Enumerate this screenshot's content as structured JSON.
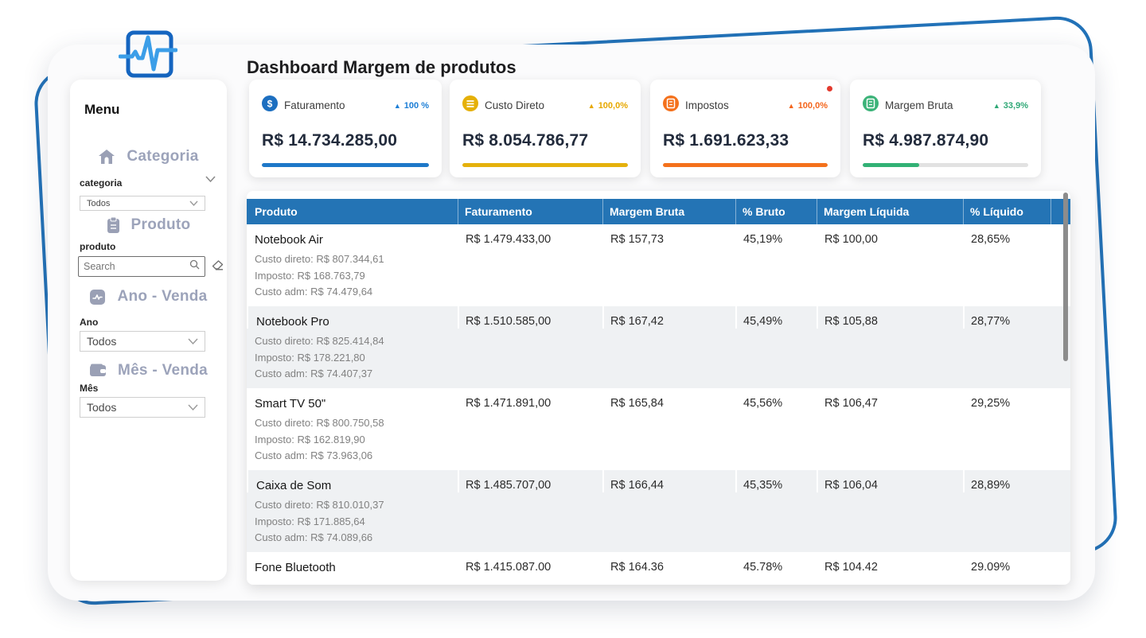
{
  "app": {
    "title": "Dashboard Margem de produtos"
  },
  "sidebar": {
    "title": "Menu",
    "sections": [
      {
        "icon": "home-icon",
        "title": "Categoria",
        "field_label": "categoria",
        "control": {
          "type": "select",
          "value": "Todos"
        }
      },
      {
        "icon": "clipboard-icon",
        "title": "Produto",
        "field_label": "produto",
        "control": {
          "type": "search",
          "placeholder": "Search",
          "value": ""
        }
      },
      {
        "icon": "chart-icon",
        "title": "Ano - Venda",
        "field_label": "Ano",
        "control": {
          "type": "select",
          "value": "Todos"
        }
      },
      {
        "icon": "wallet-icon",
        "title": "Mês - Venda",
        "field_label": "Mês",
        "control": {
          "type": "select",
          "value": "Todos"
        }
      }
    ]
  },
  "kpis": [
    {
      "label": "Faturamento",
      "delta": "100 %",
      "value": "R$ 14.734.285,00",
      "color": "#1E78C8",
      "progress": 100,
      "alert_dot": false
    },
    {
      "label": "Custo Direto",
      "delta": "100,0%",
      "value": "R$ 8.054.786,77",
      "color": "#E5B10C",
      "progress": 100,
      "alert_dot": false
    },
    {
      "label": "Impostos",
      "delta": "100,0%",
      "value": "R$ 1.691.623,33",
      "color": "#F4711C",
      "progress": 100,
      "alert_dot": true
    },
    {
      "label": "Margem Bruta",
      "delta": "33,9%",
      "value": "R$ 4.987.874,90",
      "color": "#32B175",
      "progress": 34,
      "alert_dot": false
    }
  ],
  "table": {
    "columns": [
      "Produto",
      "Faturamento",
      "Margem Bruta",
      "% Bruto",
      "Margem Líquida",
      "% Líquido"
    ],
    "rows": [
      {
        "produto": "Notebook Air",
        "faturamento": "R$ 1.479.433,00",
        "margem_bruta": "R$ 157,73",
        "pct_bruto": "45,19%",
        "margem_liquida": "R$ 100,00",
        "pct_liquido": "28,65%",
        "custo_direto": "Custo direto: R$ 807.344,61",
        "imposto": "Imposto: R$ 168.763,79",
        "custo_adm": "Custo adm: R$ 74.479,64"
      },
      {
        "produto": "Notebook Pro",
        "faturamento": "R$ 1.510.585,00",
        "margem_bruta": "R$ 167,42",
        "pct_bruto": "45,49%",
        "margem_liquida": "R$ 105,88",
        "pct_liquido": "28,77%",
        "custo_direto": "Custo direto: R$ 825.414,84",
        "imposto": "Imposto: R$ 178.221,80",
        "custo_adm": "Custo adm: R$ 74.407,37"
      },
      {
        "produto": "Smart TV 50\"",
        "faturamento": "R$ 1.471.891,00",
        "margem_bruta": "R$ 165,84",
        "pct_bruto": "45,56%",
        "margem_liquida": "R$ 106,47",
        "pct_liquido": "29,25%",
        "custo_direto": "Custo direto: R$ 800.750,58",
        "imposto": "Imposto: R$ 162.819,90",
        "custo_adm": "Custo adm: R$ 73.963,06"
      },
      {
        "produto": "Caixa de Som",
        "faturamento": "R$ 1.485.707,00",
        "margem_bruta": "R$ 166,44",
        "pct_bruto": "45,35%",
        "margem_liquida": "R$ 106,04",
        "pct_liquido": "28,89%",
        "custo_direto": "Custo direto: R$ 810.010,37",
        "imposto": "Imposto: R$ 171.885,64",
        "custo_adm": "Custo adm: R$ 74.089,66"
      },
      {
        "produto": "Fone Bluetooth",
        "faturamento": "R$ 1.415.087.00",
        "margem_bruta": "R$ 164.36",
        "pct_bruto": "45.78%",
        "margem_liquida": "R$ 104.42",
        "pct_liquido": "29.09%",
        "custo_direto": "",
        "imposto": "",
        "custo_adm": ""
      }
    ]
  },
  "colors": {
    "frame_blue": "#2272B8",
    "table_header_blue": "#2474B5",
    "row_alt_gray": "#EFF1F3",
    "sidebar_section_text": "#9CA3BA",
    "kpi_value_text": "#222B3C"
  }
}
